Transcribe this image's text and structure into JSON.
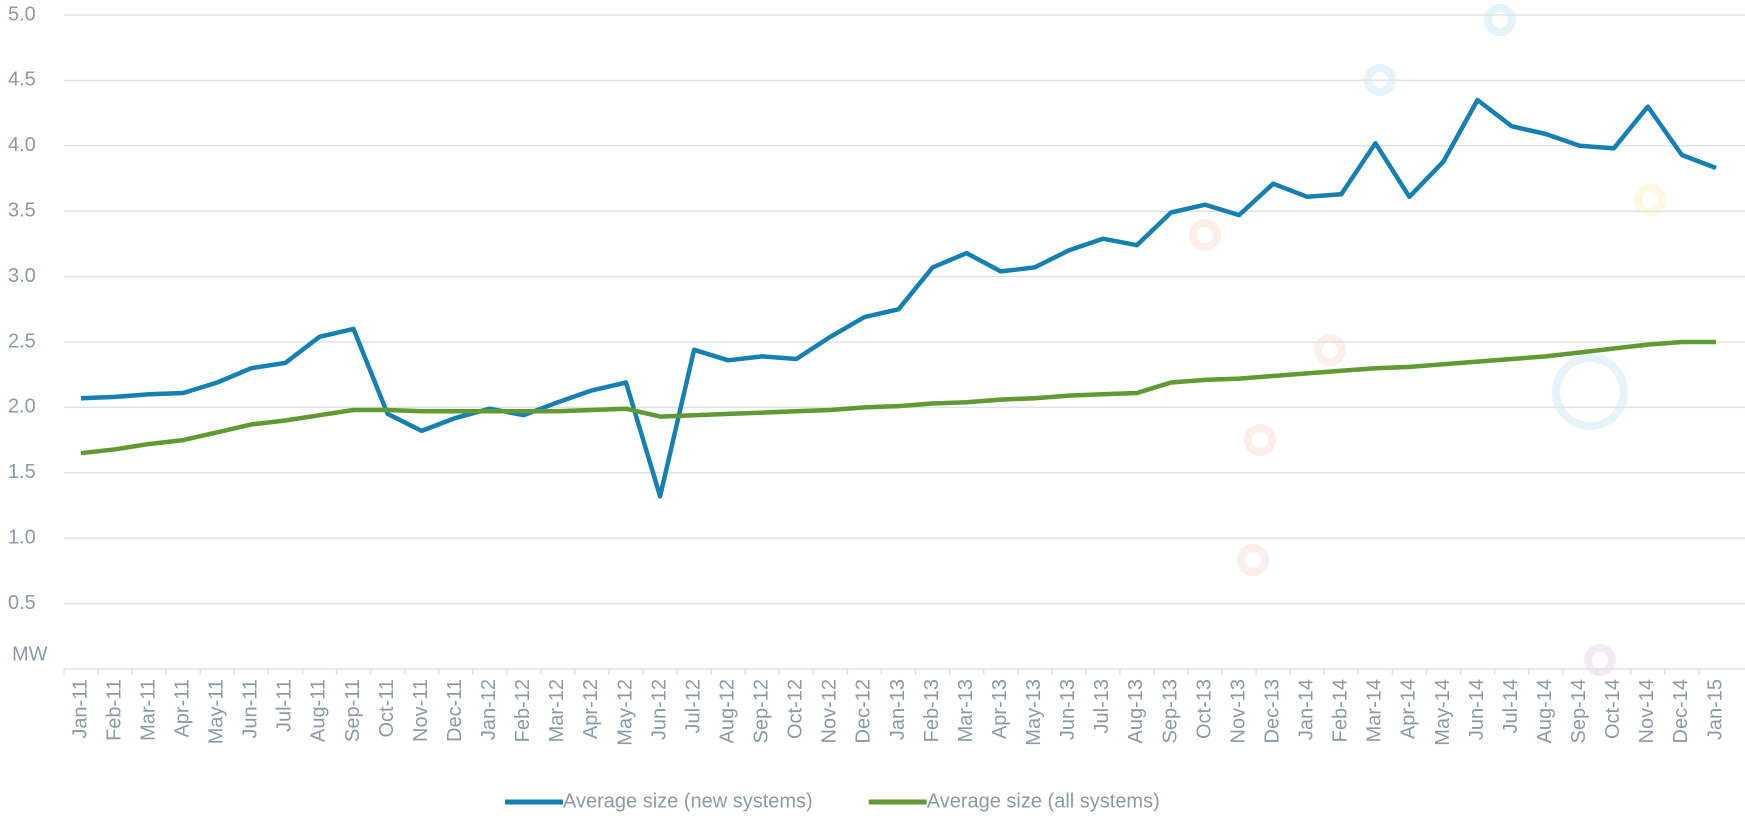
{
  "chart_data": {
    "type": "line",
    "y_label": "MW",
    "categories": [
      "Jan-11",
      "Feb-11",
      "Mar-11",
      "Apr-11",
      "May-11",
      "Jun-11",
      "Jul-11",
      "Aug-11",
      "Sep-11",
      "Oct-11",
      "Nov-11",
      "Dec-11",
      "Jan-12",
      "Feb-12",
      "Mar-12",
      "Apr-12",
      "May-12",
      "Jun-12",
      "Jul-12",
      "Aug-12",
      "Sep-12",
      "Oct-12",
      "Nov-12",
      "Dec-12",
      "Jan-13",
      "Feb-13",
      "Mar-13",
      "Apr-13",
      "May-13",
      "Jun-13",
      "Jul-13",
      "Aug-13",
      "Sep-13",
      "Oct-13",
      "Nov-13",
      "Dec-13",
      "Jan-14",
      "Feb-14",
      "Mar-14",
      "Apr-14",
      "May-14",
      "Jun-14",
      "Jul-14",
      "Aug-14",
      "Sep-14",
      "Oct-14",
      "Nov-14",
      "Dec-14",
      "Jan-15"
    ],
    "series": [
      {
        "name": "Average size (new systems)",
        "color": "#1580b4",
        "values": [
          2.07,
          2.08,
          2.1,
          2.11,
          2.19,
          2.3,
          2.34,
          2.54,
          2.6,
          1.95,
          1.82,
          1.92,
          1.99,
          1.94,
          2.04,
          2.13,
          2.19,
          1.32,
          2.44,
          2.36,
          2.39,
          2.37,
          2.54,
          2.69,
          2.75,
          3.07,
          3.18,
          3.04,
          3.07,
          3.2,
          3.29,
          3.24,
          3.49,
          3.55,
          3.47,
          3.71,
          3.61,
          3.63,
          4.02,
          3.61,
          3.88,
          4.35,
          4.15,
          4.09,
          4.0,
          3.98,
          4.3,
          3.93,
          3.83
        ]
      },
      {
        "name": "Average size (all systems)",
        "color": "#5f9a32",
        "values": [
          1.65,
          1.68,
          1.72,
          1.75,
          1.81,
          1.87,
          1.9,
          1.94,
          1.98,
          1.98,
          1.97,
          1.97,
          1.97,
          1.97,
          1.97,
          1.98,
          1.99,
          1.93,
          1.94,
          1.95,
          1.96,
          1.97,
          1.98,
          2.0,
          2.01,
          2.03,
          2.04,
          2.06,
          2.07,
          2.09,
          2.1,
          2.11,
          2.19,
          2.21,
          2.22,
          2.24,
          2.26,
          2.28,
          2.3,
          2.31,
          2.33,
          2.35,
          2.37,
          2.39,
          2.42,
          2.45,
          2.48,
          2.5,
          2.5
        ]
      }
    ],
    "ylim": [
      0,
      5
    ],
    "yticks": [
      {
        "value": 0.5,
        "label": "0.5"
      },
      {
        "value": 1,
        "label": "1.0"
      },
      {
        "value": 1.5,
        "label": "1.5"
      },
      {
        "value": 2,
        "label": "2.0"
      },
      {
        "value": 2.5,
        "label": "2.5"
      },
      {
        "value": 3,
        "label": "3.0"
      },
      {
        "value": 3.5,
        "label": "3.5"
      },
      {
        "value": 4,
        "label": "4.0"
      },
      {
        "value": 4.5,
        "label": "4.5"
      },
      {
        "value": 5,
        "label": "5.0"
      }
    ],
    "grid": true
  }
}
